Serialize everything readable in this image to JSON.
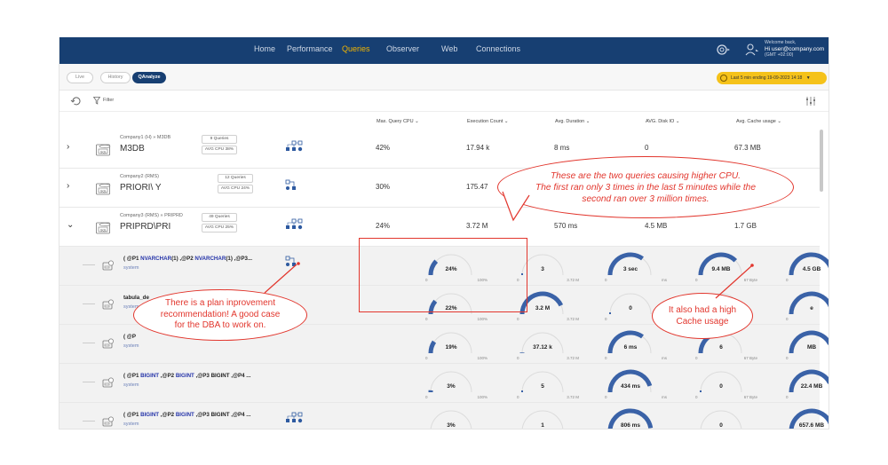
{
  "nav": {
    "items": [
      "Home",
      "Performance",
      "Queries",
      "Observer",
      "Web",
      "Connections"
    ],
    "active": "Queries",
    "welcome": "Welcome back,",
    "user": "Hi  user@company.com",
    "tz": "(GMT +02:00)"
  },
  "toolbar": {
    "modes": [
      "Live",
      "History",
      "QAnalyze"
    ],
    "active_mode": "QAnalyze",
    "time_range": "Last 5 min ending 19-09-2023 14:18"
  },
  "filter": {
    "label": "Filter"
  },
  "columns": [
    "Max. Query CPU",
    "Execution Count",
    "Avg. Duration",
    "AVG. Disk IO",
    "Avg. Cache usage"
  ],
  "databases": [
    {
      "sub": "Company1 (H) » M3DB",
      "name": "M3DB",
      "queries": "9 Queries",
      "cpu": "AVG CPU 38%",
      "max_cpu": "42%",
      "exec": "17.94 k",
      "duration": "8 ms",
      "disk": "0",
      "cache": "67.3 MB"
    },
    {
      "sub": "Company2 (RMS)",
      "name": "PRIORI\\ Y",
      "queries": "12 Queries",
      "cpu": "AVG CPU 24%",
      "max_cpu": "30%",
      "exec": "175.47",
      "duration": "",
      "disk": "",
      "cache": ""
    },
    {
      "sub": "Company3 (RMS) » PRIPRD",
      "name": "PRIPRD\\PRI",
      "queries": "49 Queries",
      "cpu": "AVG CPU 25%",
      "max_cpu": "24%",
      "exec": "3.72 M",
      "duration": "570 ms",
      "disk": "4.5 MB",
      "cache": "1.7 GB"
    }
  ],
  "queries": [
    {
      "parts": [
        "( @P1 ",
        "NVARCHAR",
        "(1) ,@P2 ",
        "NVARCHAR",
        "(1) ,@P3..."
      ],
      "sys": "system",
      "cpu": "24%",
      "cpu_max": "100%",
      "exec": "3",
      "exec_max": "3.72 M",
      "dur": "3 sec",
      "dur_max": "ms",
      "disk": "9.4 MB",
      "disk_max": "67 Byte",
      "cache": "4.5 GB",
      "cache_max": "127.7 KB",
      "f": [
        0.24,
        0.0001,
        0.7,
        0.75,
        0.95
      ]
    },
    {
      "parts": [
        "tabula_de",
        "",
        "",
        "",
        ""
      ],
      "sys": "system",
      "cpu": "22%",
      "cpu_max": "100%",
      "exec": "3.2 M",
      "exec_max": "3.72 M",
      "dur": "0",
      "dur_max": "ms",
      "disk": "",
      "disk_max": "",
      "cache": "e",
      "cache_max": "127.7 KB",
      "f": [
        0.22,
        0.86,
        0,
        0,
        0.9
      ]
    },
    {
      "parts": [
        "( @P",
        "",
        "",
        "",
        ""
      ],
      "sys": "system",
      "cpu": "19%",
      "cpu_max": "100%",
      "exec": "37.12 k",
      "exec_max": "3.72 M",
      "dur": "6 ms",
      "dur_max": "ms",
      "disk": "6",
      "disk_max": "67 Byte",
      "cache": "MB",
      "cache_max": "127.7 KB",
      "f": [
        0.19,
        0.01,
        0.7,
        0.6,
        0.85
      ]
    },
    {
      "parts": [
        "( @P1 ",
        "BIGINT",
        " ,@P2 ",
        "BIGINT",
        " ,@P3 BIGINT ,@P4 ..."
      ],
      "sys": "system",
      "cpu": "3%",
      "cpu_max": "100%",
      "exec": "5",
      "exec_max": "3.72 M",
      "dur": "434 ms",
      "dur_max": "ms",
      "disk": "0",
      "disk_max": "67 Byte",
      "cache": "22.4 MB",
      "cache_max": "127.7 KB",
      "f": [
        0.03,
        0.0001,
        0.9,
        0,
        0.85
      ]
    },
    {
      "parts": [
        "( @P1 ",
        "BIGINT",
        " ,@P2 ",
        "BIGINT",
        " ,@P3 BIGINT ,@P4 ..."
      ],
      "sys": "system",
      "cpu": "3%",
      "cpu_max": "100%",
      "exec": "1",
      "exec_max": "3.72 M",
      "dur": "806 ms",
      "dur_max": "ms",
      "disk": "0",
      "disk_max": "67 Byte",
      "cache": "657.6 MB",
      "cache_max": "127.7 KB",
      "f": [
        0.03,
        0.0001,
        0.95,
        0,
        0.9
      ]
    }
  ],
  "annotations": {
    "cpu": [
      "These are the two queries causing higher CPU.",
      "The first ran only 3 times in the last 5 minutes while the",
      "second ran over 3 million times."
    ],
    "plan_title": "There is a plan inprovement",
    "plan": [
      "There is a plan inprovement",
      "recommendation! A good case",
      "for the DBA to work on."
    ],
    "cache": [
      "It also had a high",
      "Cache usage"
    ],
    "color": "#e2362d"
  },
  "colors": {
    "accent": "#173f72",
    "active_tab": "#f2b500",
    "gauge": "#3a62a7"
  }
}
